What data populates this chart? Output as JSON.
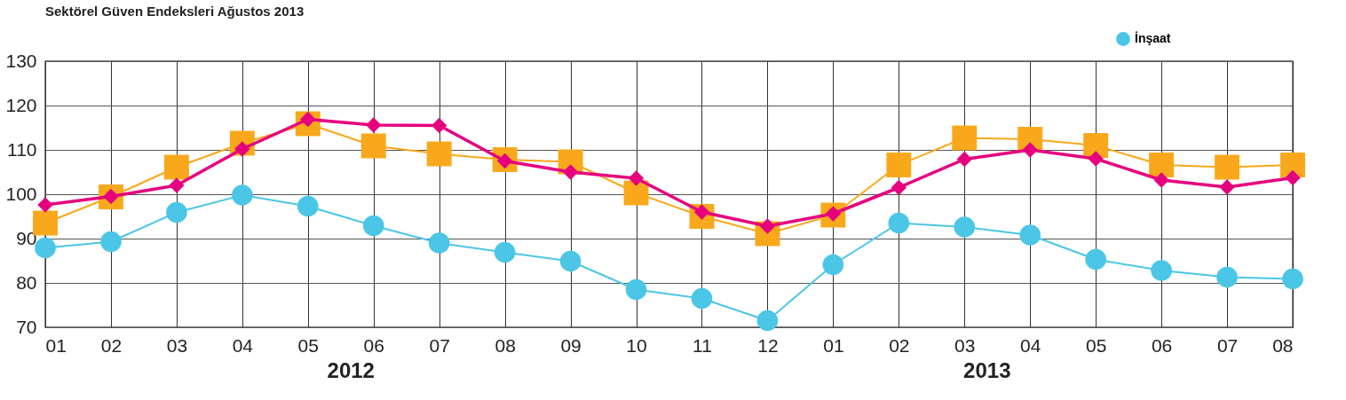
{
  "chart_data": {
    "type": "line",
    "title": "Sektörel Güven Endeksleri Ağustos 2013",
    "categories": [
      "01",
      "02",
      "03",
      "04",
      "05",
      "06",
      "07",
      "08",
      "09",
      "10",
      "11",
      "12",
      "01",
      "02",
      "03",
      "04",
      "05",
      "06",
      "07",
      "08"
    ],
    "series": [
      {
        "color": "#f9a81b",
        "marker": "square",
        "values": [
          93.5,
          99.4,
          106.1,
          111.5,
          115.9,
          110.9,
          109.1,
          107.8,
          107.3,
          100.3,
          95.0,
          91.1,
          95.3,
          106.6,
          112.7,
          112.4,
          111.0,
          106.6,
          106.1,
          106.6
        ]
      },
      {
        "color": "#e6007e",
        "marker": "diamond",
        "values": [
          97.6,
          99.5,
          102.0,
          110.2,
          116.9,
          115.6,
          115.5,
          107.5,
          105.0,
          103.6,
          96.0,
          92.8,
          95.6,
          101.5,
          107.9,
          110.0,
          108.0,
          103.2,
          101.6,
          103.7
        ]
      },
      {
        "name": "İnşaat",
        "color": "#4bc6e6",
        "marker": "circle",
        "values": [
          87.9,
          89.3,
          95.9,
          99.8,
          97.3,
          92.9,
          89.0,
          86.9,
          84.9,
          78.5,
          76.5,
          71.5,
          84.1,
          93.5,
          92.6,
          90.8,
          85.3,
          82.8,
          81.3,
          80.9
        ]
      }
    ],
    "ylim": [
      70,
      130
    ],
    "yticks": [
      70,
      80,
      90,
      100,
      110,
      120,
      130
    ],
    "grid": true,
    "legend": "top right",
    "annotations": [
      "2012",
      "2013"
    ]
  }
}
